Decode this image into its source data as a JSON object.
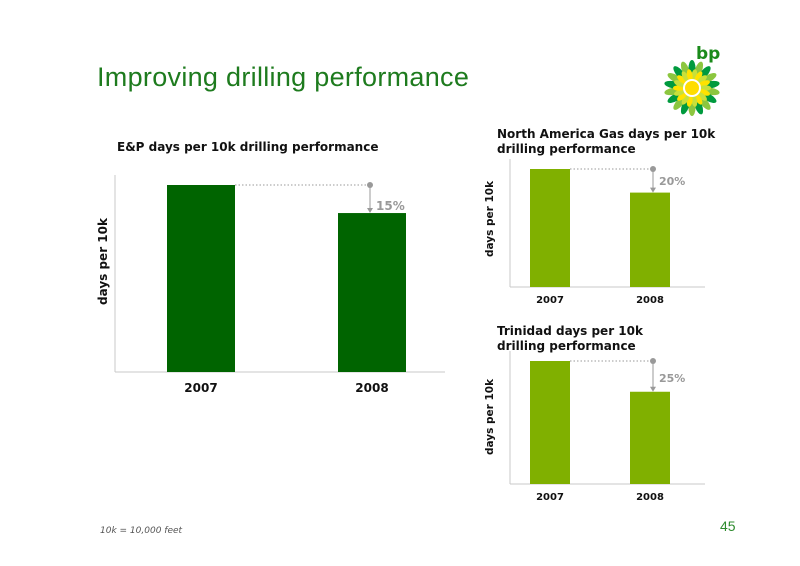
{
  "slide": {
    "title": "Improving drilling performance",
    "footnote": "10k = 10,000 feet",
    "page_number": "45",
    "logo_text": "bp"
  },
  "colors": {
    "title": "#1e7b1e",
    "dark_green": "#006400",
    "light_green": "#80b000",
    "annotation": "#999999"
  },
  "chart_data": [
    {
      "id": "ep",
      "type": "bar",
      "title": "E&P days per 10k drilling performance",
      "ylabel": "days per 10k",
      "categories": [
        "2007",
        "2008"
      ],
      "values": [
        100,
        85
      ],
      "ylim": [
        0,
        100
      ],
      "annotation": "15%",
      "color": "#006400"
    },
    {
      "id": "nag",
      "type": "bar",
      "title": "North America Gas days per 10k drilling performance",
      "ylabel": "days per 10k",
      "categories": [
        "2007",
        "2008"
      ],
      "values": [
        100,
        80
      ],
      "ylim": [
        0,
        100
      ],
      "annotation": "20%",
      "color": "#80b000"
    },
    {
      "id": "trin",
      "type": "bar",
      "title": "Trinidad days per 10k drilling performance",
      "ylabel": "days per 10k",
      "categories": [
        "2007",
        "2008"
      ],
      "values": [
        100,
        75
      ],
      "ylim": [
        0,
        100
      ],
      "annotation": "25%",
      "color": "#80b000"
    }
  ]
}
